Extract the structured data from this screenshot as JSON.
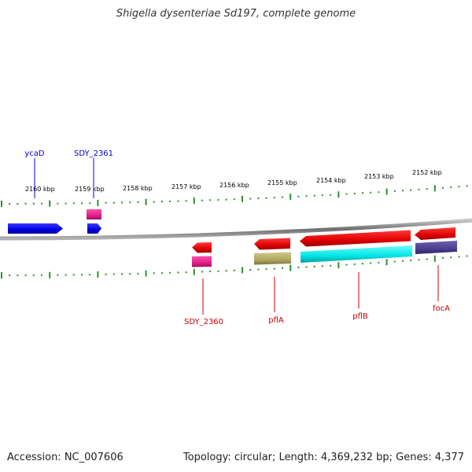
{
  "title": "Shigella dysenteriae Sd197, complete genome",
  "footer": {
    "accession": "Accession: NC_007606",
    "stats": "Topology: circular; Length: 4,369,232 bp; Genes: 4,377"
  },
  "scale_labels": [
    "2160 kbp",
    "2159 kbp",
    "2158 kbp",
    "2157 kbp",
    "2156 kbp",
    "2155 kbp",
    "2154 kbp",
    "2153 kbp",
    "2152 kbp"
  ],
  "gene_labels": {
    "ycaD": "ycaD",
    "sdy2361": "SDY_2361",
    "sdy2360": "SDY_2360",
    "pflA": "pflA",
    "pflB": "pflB",
    "focA": "focA"
  },
  "colors": {
    "forward_gene": "#0000ee",
    "reverse_gene": "#ee0000",
    "forward_label": "#0000cc",
    "reverse_label": "#cc0000",
    "pink_feature": "#e0218a",
    "olive_feature": "#b0a860",
    "cyan_feature": "#00e5e5",
    "slate_feature": "#4b3f8f",
    "tick": "#2f8f2f",
    "backbone": "#808080"
  }
}
